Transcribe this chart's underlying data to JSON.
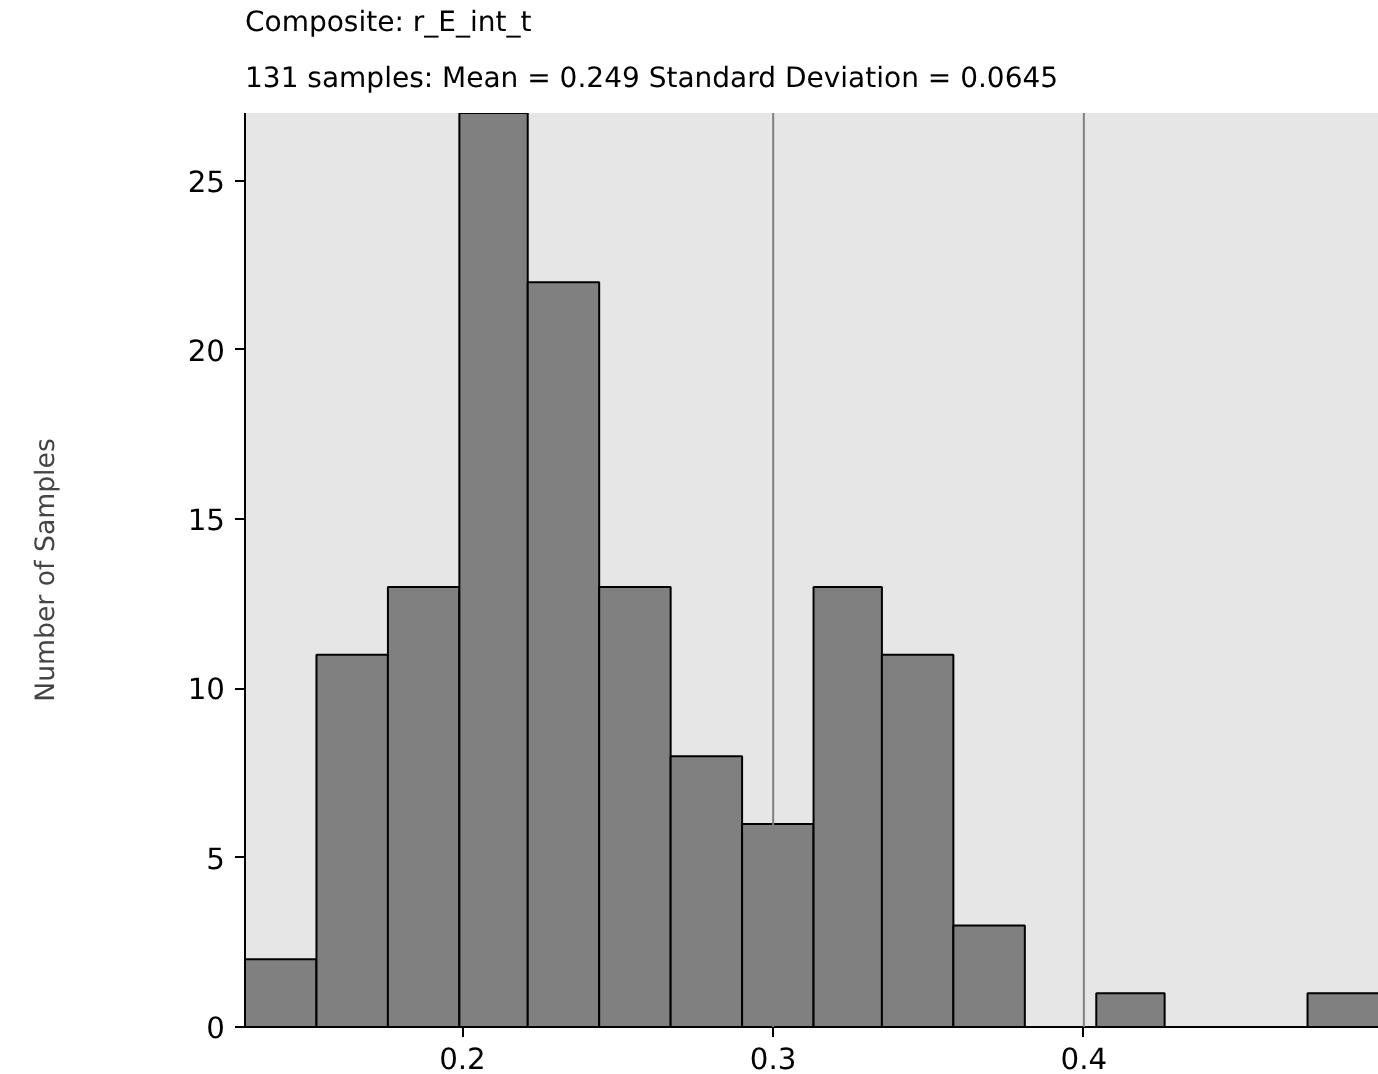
{
  "chart_data": {
    "type": "histogram",
    "title": "Composite: r_E_int_t",
    "subtitle": "131 samples: Mean = 0.249   Standard Deviation = 0.0645",
    "ylabel": "Number of Samples",
    "bins": [
      0.13,
      0.153,
      0.176,
      0.199,
      0.221,
      0.244,
      0.267,
      0.29,
      0.313,
      0.335,
      0.358,
      0.381,
      0.404,
      0.426,
      0.472,
      0.495
    ],
    "values": [
      2,
      11,
      13,
      27,
      22,
      13,
      8,
      6,
      13,
      11,
      3,
      0,
      1,
      0,
      1
    ],
    "color": "#808080",
    "xlim": [
      0.13,
      0.495
    ],
    "xticks": [
      0.2,
      0.3,
      0.4
    ],
    "ylim": [
      0,
      27
    ],
    "yticks": [
      0,
      5,
      10,
      15,
      20,
      25
    ],
    "ref_lines": [
      {
        "axis": "x",
        "value": 0.3,
        "color": "#808080"
      },
      {
        "axis": "x",
        "value": 0.4,
        "color": "#808080"
      }
    ]
  }
}
